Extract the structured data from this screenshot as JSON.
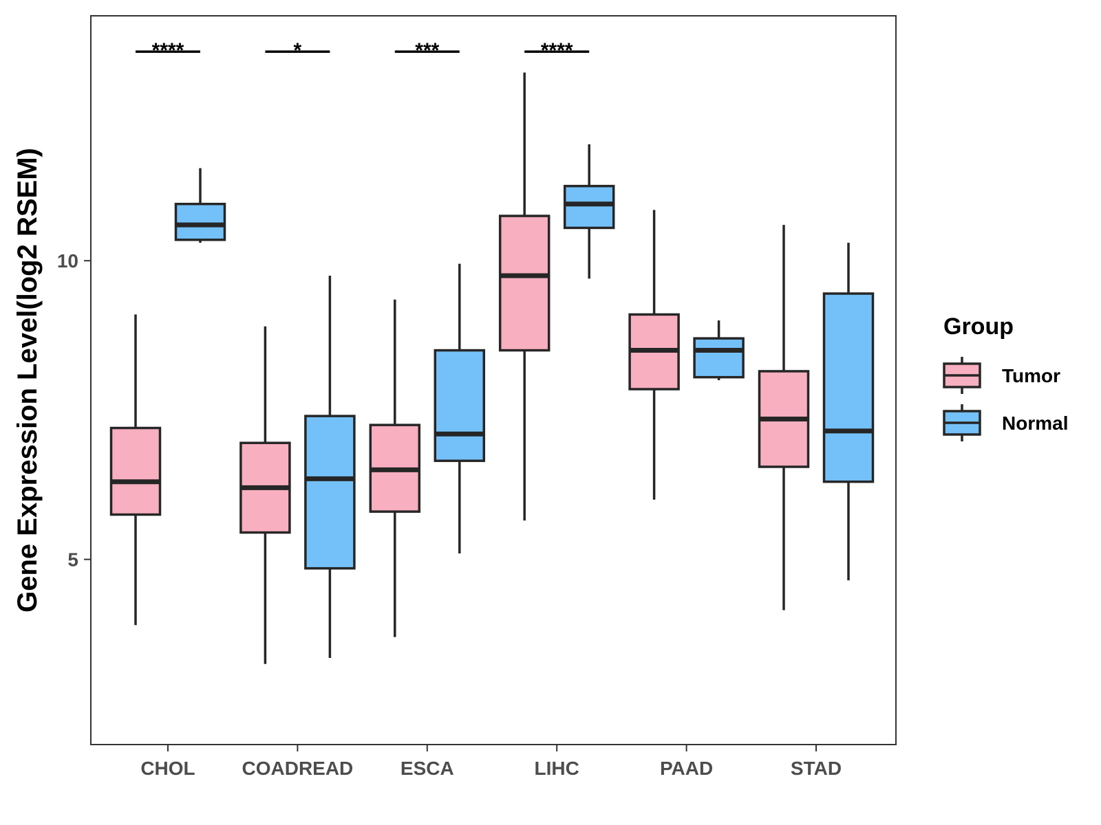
{
  "chart_data": {
    "type": "boxplot",
    "title": "",
    "xlabel": "",
    "ylabel": "Gene Expression Level(log2 RSEM)",
    "ylim": [
      1.9,
      14.1
    ],
    "yticks": [
      5,
      10
    ],
    "grid": false,
    "legend": {
      "title": "Group",
      "position": "right",
      "entries": [
        {
          "name": "Tumor",
          "color": "#F8AFC0"
        },
        {
          "name": "Normal",
          "color": "#74C1F9"
        }
      ]
    },
    "categories": [
      "CHOL",
      "COADREAD",
      "ESCA",
      "LIHC",
      "PAAD",
      "STAD"
    ],
    "series": [
      {
        "name": "Tumor",
        "color": "#F8AFC0",
        "boxes": [
          {
            "category": "CHOL",
            "min": 3.9,
            "q1": 5.75,
            "median": 6.3,
            "q3": 7.2,
            "max": 9.1
          },
          {
            "category": "COADREAD",
            "min": 3.25,
            "q1": 5.45,
            "median": 6.2,
            "q3": 6.95,
            "max": 8.9
          },
          {
            "category": "ESCA",
            "min": 3.7,
            "q1": 5.8,
            "median": 6.5,
            "q3": 7.25,
            "max": 9.35
          },
          {
            "category": "LIHC",
            "min": 5.65,
            "q1": 8.5,
            "median": 9.75,
            "q3": 10.75,
            "max": 13.15
          },
          {
            "category": "PAAD",
            "min": 6.0,
            "q1": 7.85,
            "median": 8.5,
            "q3": 9.1,
            "max": 10.85
          },
          {
            "category": "STAD",
            "min": 4.15,
            "q1": 6.55,
            "median": 7.35,
            "q3": 8.15,
            "max": 10.6
          }
        ]
      },
      {
        "name": "Normal",
        "color": "#74C1F9",
        "boxes": [
          {
            "category": "CHOL",
            "min": 10.3,
            "q1": 10.35,
            "median": 10.6,
            "q3": 10.95,
            "max": 11.55
          },
          {
            "category": "COADREAD",
            "min": 3.35,
            "q1": 4.85,
            "median": 6.35,
            "q3": 7.4,
            "max": 9.75
          },
          {
            "category": "ESCA",
            "min": 5.1,
            "q1": 6.65,
            "median": 7.1,
            "q3": 8.5,
            "max": 9.95
          },
          {
            "category": "LIHC",
            "min": 9.7,
            "q1": 10.55,
            "median": 10.95,
            "q3": 11.25,
            "max": 11.95
          },
          {
            "category": "PAAD",
            "min": 8.0,
            "q1": 8.05,
            "median": 8.5,
            "q3": 8.7,
            "max": 9.0
          },
          {
            "category": "STAD",
            "min": 4.65,
            "q1": 6.3,
            "median": 7.15,
            "q3": 9.45,
            "max": 10.3
          }
        ]
      }
    ],
    "significance": [
      {
        "category": "CHOL",
        "label": "****"
      },
      {
        "category": "COADREAD",
        "label": "*"
      },
      {
        "category": "ESCA",
        "label": "***"
      },
      {
        "category": "LIHC",
        "label": "****"
      }
    ],
    "significance_y": 13.5
  }
}
